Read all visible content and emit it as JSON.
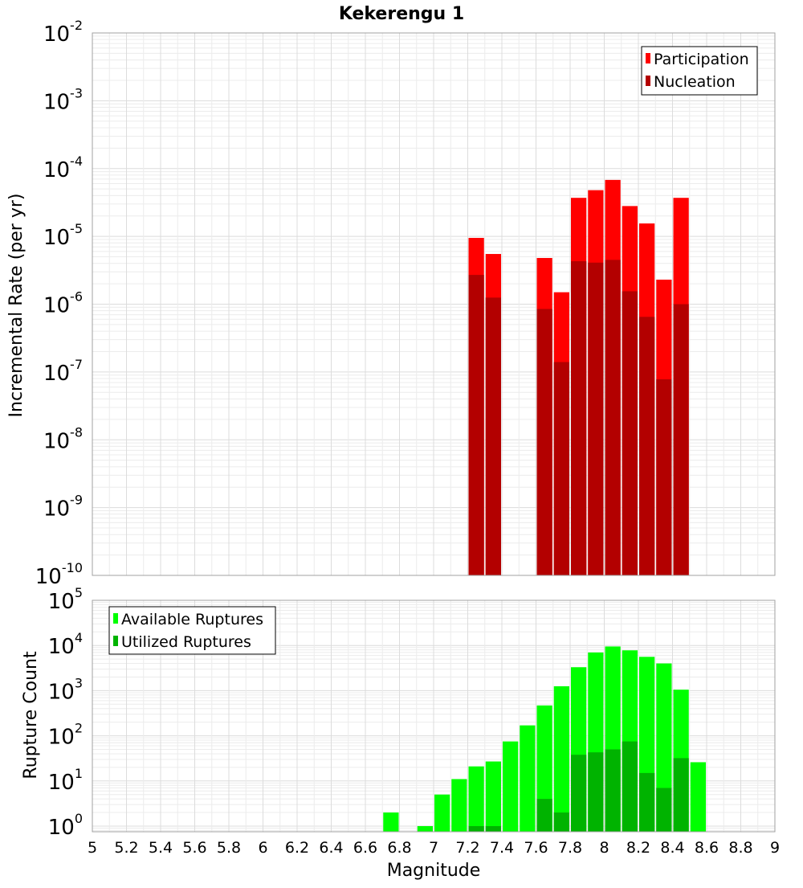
{
  "chart_data": [
    {
      "type": "bar",
      "title": "Kekerengu 1",
      "xlabel": "",
      "ylabel": "Incremental Rate (per yr)",
      "y_scale": "log",
      "ylim": [
        1e-10,
        0.01
      ],
      "xlim": [
        5,
        9
      ],
      "bar_width": 0.1,
      "legend_position": "top-right",
      "y_ticks": [
        {
          "base": "10",
          "exp": "-10",
          "value": 1e-10
        },
        {
          "base": "10",
          "exp": "-9",
          "value": 1e-09
        },
        {
          "base": "10",
          "exp": "-8",
          "value": 1e-08
        },
        {
          "base": "10",
          "exp": "-7",
          "value": 1e-07
        },
        {
          "base": "10",
          "exp": "-6",
          "value": 1e-06
        },
        {
          "base": "10",
          "exp": "-5",
          "value": 1e-05
        },
        {
          "base": "10",
          "exp": "-4",
          "value": 0.0001
        },
        {
          "base": "10",
          "exp": "-3",
          "value": 0.001
        },
        {
          "base": "10",
          "exp": "-2",
          "value": 0.01
        }
      ],
      "series": [
        {
          "name": "Participation",
          "color": "#ff0000",
          "x": [
            7.25,
            7.35,
            7.65,
            7.75,
            7.85,
            7.95,
            8.05,
            8.15,
            8.25,
            8.35,
            8.45
          ],
          "values": [
            9.5e-06,
            5.5e-06,
            4.8e-06,
            1.5e-06,
            3.7e-05,
            4.8e-05,
            6.8e-05,
            2.8e-05,
            1.55e-05,
            2.3e-06,
            3.7e-05
          ]
        },
        {
          "name": "Nucleation",
          "color": "#b30000",
          "x": [
            7.25,
            7.35,
            7.65,
            7.75,
            7.85,
            7.95,
            8.05,
            8.15,
            8.25,
            8.35,
            8.45
          ],
          "values": [
            2.7e-06,
            1.25e-06,
            8.5e-07,
            1.4e-07,
            4.3e-06,
            4.1e-06,
            4.5e-06,
            1.55e-06,
            6.5e-07,
            7.8e-08,
            1e-06
          ]
        }
      ]
    },
    {
      "type": "bar",
      "title": "",
      "xlabel": "Magnitude",
      "ylabel": "Rupture Count",
      "y_scale": "log",
      "ylim": [
        0.75,
        100000
      ],
      "xlim": [
        5,
        9
      ],
      "bar_width": 0.1,
      "legend_position": "top-left",
      "x_ticks": [
        "5",
        "5.2",
        "5.4",
        "5.6",
        "5.8",
        "6",
        "6.2",
        "6.4",
        "6.6",
        "6.8",
        "7",
        "7.2",
        "7.4",
        "7.6",
        "7.8",
        "8",
        "8.2",
        "8.4",
        "8.6",
        "8.8",
        "9"
      ],
      "y_ticks": [
        {
          "base": "10",
          "exp": "0",
          "value": 1
        },
        {
          "base": "10",
          "exp": "1",
          "value": 10
        },
        {
          "base": "10",
          "exp": "2",
          "value": 100
        },
        {
          "base": "10",
          "exp": "3",
          "value": 1000
        },
        {
          "base": "10",
          "exp": "4",
          "value": 10000
        },
        {
          "base": "10",
          "exp": "5",
          "value": 100000
        }
      ],
      "series": [
        {
          "name": "Available Ruptures",
          "color": "#00ff00",
          "x": [
            6.75,
            6.95,
            7.05,
            7.15,
            7.25,
            7.35,
            7.45,
            7.55,
            7.65,
            7.75,
            7.85,
            7.95,
            8.05,
            8.15,
            8.25,
            8.35,
            8.45,
            8.55
          ],
          "values": [
            2,
            1,
            5,
            11,
            21,
            27,
            75,
            170,
            470,
            1250,
            3300,
            7000,
            9500,
            7800,
            5600,
            4000,
            1050,
            26
          ]
        },
        {
          "name": "Utilized Ruptures",
          "color": "#00b300",
          "x": [
            7.25,
            7.35,
            7.65,
            7.75,
            7.85,
            7.95,
            8.05,
            8.15,
            8.25,
            8.35,
            8.45
          ],
          "values": [
            1,
            1,
            4,
            2,
            38,
            43,
            50,
            75,
            15,
            7,
            32
          ]
        }
      ]
    }
  ]
}
